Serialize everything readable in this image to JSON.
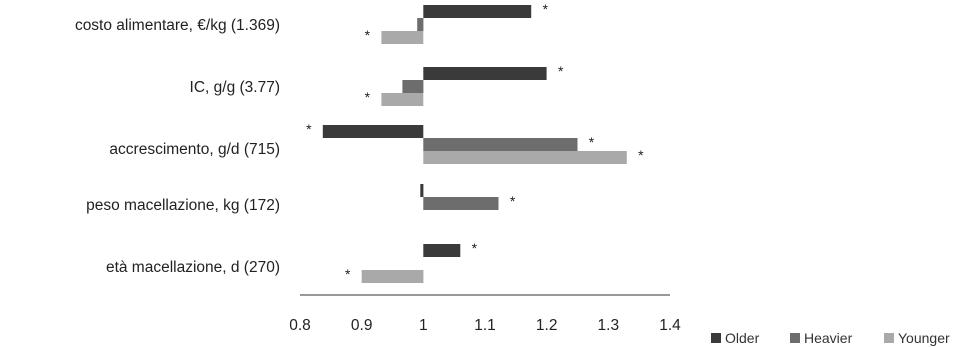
{
  "chart_data": {
    "type": "bar",
    "orientation": "horizontal",
    "baseline": 1,
    "xlim": [
      0.8,
      1.4
    ],
    "xticks": [
      0.8,
      0.9,
      1,
      1.1,
      1.2,
      1.3,
      1.4
    ],
    "xtick_labels": [
      "0.8",
      "0.9",
      "1",
      "1.1",
      "1.2",
      "1.3",
      "1.4"
    ],
    "categories": [
      "costo alimentare, €/kg  (1.369)",
      "IC, g/g  (3.77)",
      "accrescimento, g/d  (715)",
      "peso macellazione, kg (172)",
      "età macellazione, d  (270)"
    ],
    "series": [
      {
        "name": "Older",
        "color": "#3a3a3a",
        "values": [
          1.175,
          1.2,
          0.837,
          0.995,
          1.06
        ],
        "significant": [
          true,
          true,
          true,
          false,
          true
        ]
      },
      {
        "name": "Heavier",
        "color": "#6d6d6d",
        "values": [
          0.99,
          0.966,
          1.25,
          1.122,
          1.0
        ],
        "significant": [
          false,
          false,
          true,
          true,
          false
        ]
      },
      {
        "name": "Younger",
        "color": "#a9a9a9",
        "values": [
          0.932,
          0.932,
          1.33,
          1.0,
          0.9
        ],
        "significant": [
          true,
          true,
          true,
          false,
          true
        ]
      }
    ],
    "significance_marker": "*",
    "legend": {
      "position": "bottom-right"
    },
    "grid": false,
    "title": "",
    "xlabel": "",
    "ylabel": ""
  }
}
